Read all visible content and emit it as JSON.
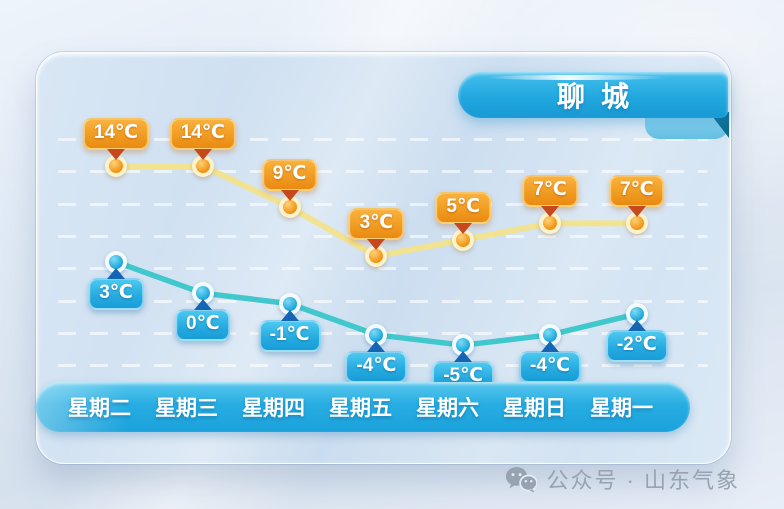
{
  "header": {
    "city": "聊城"
  },
  "watermark": {
    "icon": "wechat-icon",
    "text": "公众号 · 山东气象"
  },
  "colors": {
    "ribbon_blue": "#22a8e0",
    "day_bar_blue": "#27ade2",
    "high_line": "#f2e38c",
    "high_label": "#f09c22",
    "high_arrow": "#c8481e",
    "low_line": "#41c8cc",
    "low_label": "#27abe0",
    "low_arrow": "#1465b4",
    "panel_glass": "#cfe0f1",
    "watermark_gray": "#98a3b1"
  },
  "chart_data": {
    "type": "line",
    "title": "聊城",
    "categories": [
      "星期二",
      "星期三",
      "星期四",
      "星期五",
      "星期六",
      "星期日",
      "星期一"
    ],
    "unit": "℃",
    "series": [
      {
        "name": "high_temperature",
        "values": [
          14,
          14,
          9,
          3,
          5,
          7,
          7
        ],
        "labels": [
          "14℃",
          "14℃",
          "9℃",
          "3℃",
          "5℃",
          "7℃",
          "7℃"
        ],
        "label_side": "above"
      },
      {
        "name": "low_temperature",
        "values": [
          3,
          0,
          -1,
          -4,
          -5,
          -4,
          -2
        ],
        "labels": [
          "3℃",
          "0℃",
          "-1℃",
          "-4℃",
          "-5℃",
          "-4℃",
          "-2℃"
        ],
        "label_side": "below"
      }
    ],
    "grid": {
      "horizontal_lines": 8,
      "style": "dashed-white"
    },
    "legend": "none",
    "x_axis_position": "bottom"
  }
}
